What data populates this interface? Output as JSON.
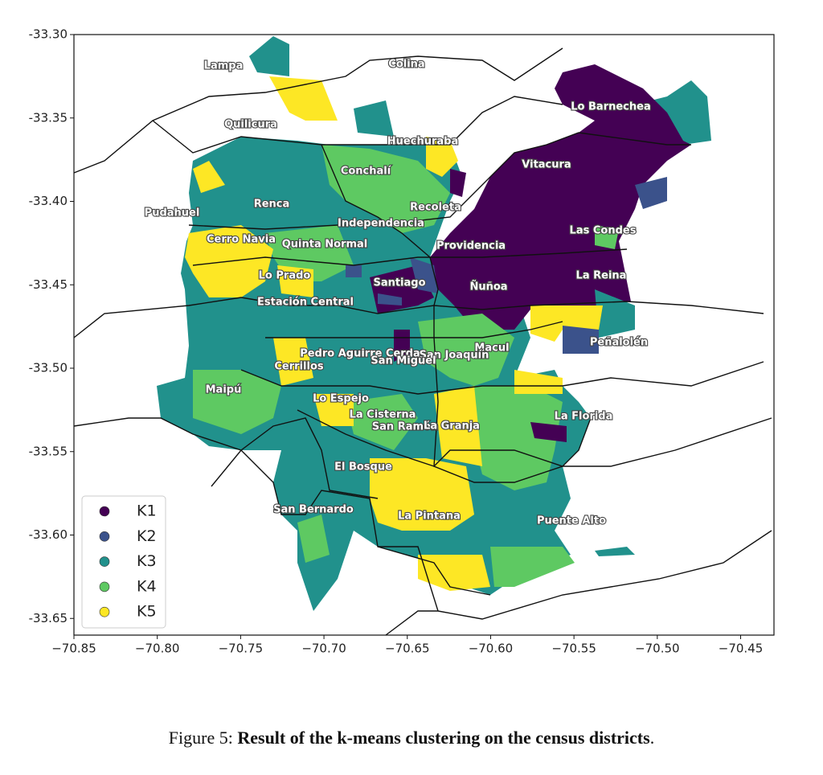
{
  "chart_data": {
    "type": "map",
    "xlim": [
      -70.85,
      -70.43
    ],
    "ylim": [
      -33.66,
      -33.3
    ],
    "xticks": [
      {
        "value": -70.85,
        "label": "−70.85"
      },
      {
        "value": -70.8,
        "label": "−70.80"
      },
      {
        "value": -70.75,
        "label": "−70.75"
      },
      {
        "value": -70.7,
        "label": "−70.70"
      },
      {
        "value": -70.65,
        "label": "−70.65"
      },
      {
        "value": -70.6,
        "label": "−70.60"
      },
      {
        "value": -70.55,
        "label": "−70.55"
      },
      {
        "value": -70.5,
        "label": "−70.50"
      },
      {
        "value": -70.45,
        "label": "−70.45"
      }
    ],
    "yticks": [
      {
        "value": -33.3,
        "label": "-33.30"
      },
      {
        "value": -33.35,
        "label": "-33.35"
      },
      {
        "value": -33.4,
        "label": "-33.40"
      },
      {
        "value": -33.45,
        "label": "-33.45"
      },
      {
        "value": -33.5,
        "label": "-33.50"
      },
      {
        "value": -33.55,
        "label": "-33.55"
      },
      {
        "value": -33.6,
        "label": "-33.60"
      },
      {
        "value": -33.65,
        "label": "-33.65"
      }
    ],
    "legend": {
      "loc": "lower left",
      "entries": [
        {
          "name": "K1",
          "color": "#440154"
        },
        {
          "name": "K2",
          "color": "#3b528b"
        },
        {
          "name": "K3",
          "color": "#21918c"
        },
        {
          "name": "K4",
          "color": "#5ec962"
        },
        {
          "name": "K5",
          "color": "#fde725"
        }
      ]
    },
    "places": [
      "Lampa",
      "Colina",
      "Lo Barnechea",
      "Quilicura",
      "Huechuraba",
      "Vitacura",
      "Conchalí",
      "Renca",
      "Recoleta",
      "Pudahuel",
      "Independencia",
      "Las Condes",
      "Cerro Navia",
      "Quinta Normal",
      "Providencia",
      "Lo Prado",
      "La Reina",
      "Santiago",
      "Ñuñoa",
      "Estación Central",
      "Peñalolén",
      "Macul",
      "Pedro Aguirre Cerda",
      "San Joaquín",
      "San Miguel",
      "Cerrillos",
      "Maipú",
      "Lo Espejo",
      "La Cisterna",
      "La Florida",
      "San Ramón",
      "La Granja",
      "El Bosque",
      "San Bernardo",
      "La Pintana",
      "Puente Alto"
    ]
  },
  "caption": {
    "prefix": "Figure 5:",
    "text": "Result of the k-means clustering on the census districts",
    "suffix": "."
  }
}
